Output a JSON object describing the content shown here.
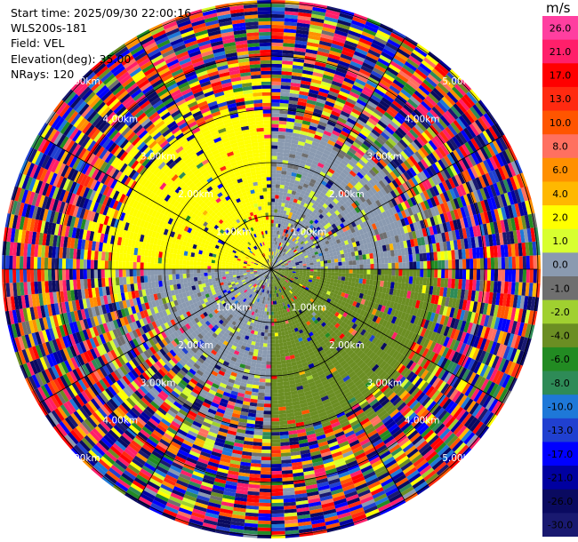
{
  "header": {
    "start_time": "Start time: 2025/09/30 22:00:16",
    "instrument": "WLS200s-181",
    "field": "Field: VEL",
    "elevation": "Elevation(deg): 35.00",
    "nrays": "NRays: 120"
  },
  "colorbar": {
    "unit": "m/s",
    "ticks": [
      "26.0",
      "21.0",
      "17.0",
      "13.0",
      "10.0",
      "8.0",
      "6.0",
      "4.0",
      "2.0",
      "1.0",
      "0.0",
      "-1.0",
      "-2.0",
      "-4.0",
      "-6.0",
      "-8.0",
      "-10.0",
      "-13.0",
      "-17.0",
      "-21.0",
      "-26.0",
      "-30.0"
    ],
    "colors": [
      "#ff3fa0",
      "#ff1f6a",
      "#ff0000",
      "#ff2a10",
      "#ff5500",
      "#ff7060",
      "#ff9000",
      "#ffb800",
      "#ffff00",
      "#d8ff30",
      "#8a9ab0",
      "#6f6f6f",
      "#a0d030",
      "#6b8e23",
      "#228b22",
      "#2e8b57",
      "#1e78d8",
      "#2040d0",
      "#0000ff",
      "#0000a0",
      "#0a0a60",
      "#191970"
    ]
  },
  "chart_data": {
    "type": "heatmap",
    "projection": "polar PPI",
    "field": "VEL",
    "units": "m/s",
    "nrays": 120,
    "elevation_deg": 35.0,
    "range_rings_km": [
      1.0,
      2.0,
      3.0,
      4.0,
      5.0
    ],
    "ring_label_text": [
      "1.00km",
      "2.00km",
      "3.00km",
      "4.00km",
      "5.00km"
    ],
    "vmin": -30.0,
    "vmax": 26.0,
    "quadrants": [
      {
        "sector": "NW",
        "dominant_velocity_ms": 3.0,
        "max_range_km": 3.0
      },
      {
        "sector": "NE",
        "dominant_velocity_ms": 0.5,
        "max_range_km": 2.6
      },
      {
        "sector": "SE",
        "dominant_velocity_ms": -3.0,
        "max_range_km": 3.0
      },
      {
        "sector": "SW",
        "dominant_velocity_ms": 0.5,
        "max_range_km": 2.4
      }
    ],
    "noise_beyond_km": 3.0
  }
}
